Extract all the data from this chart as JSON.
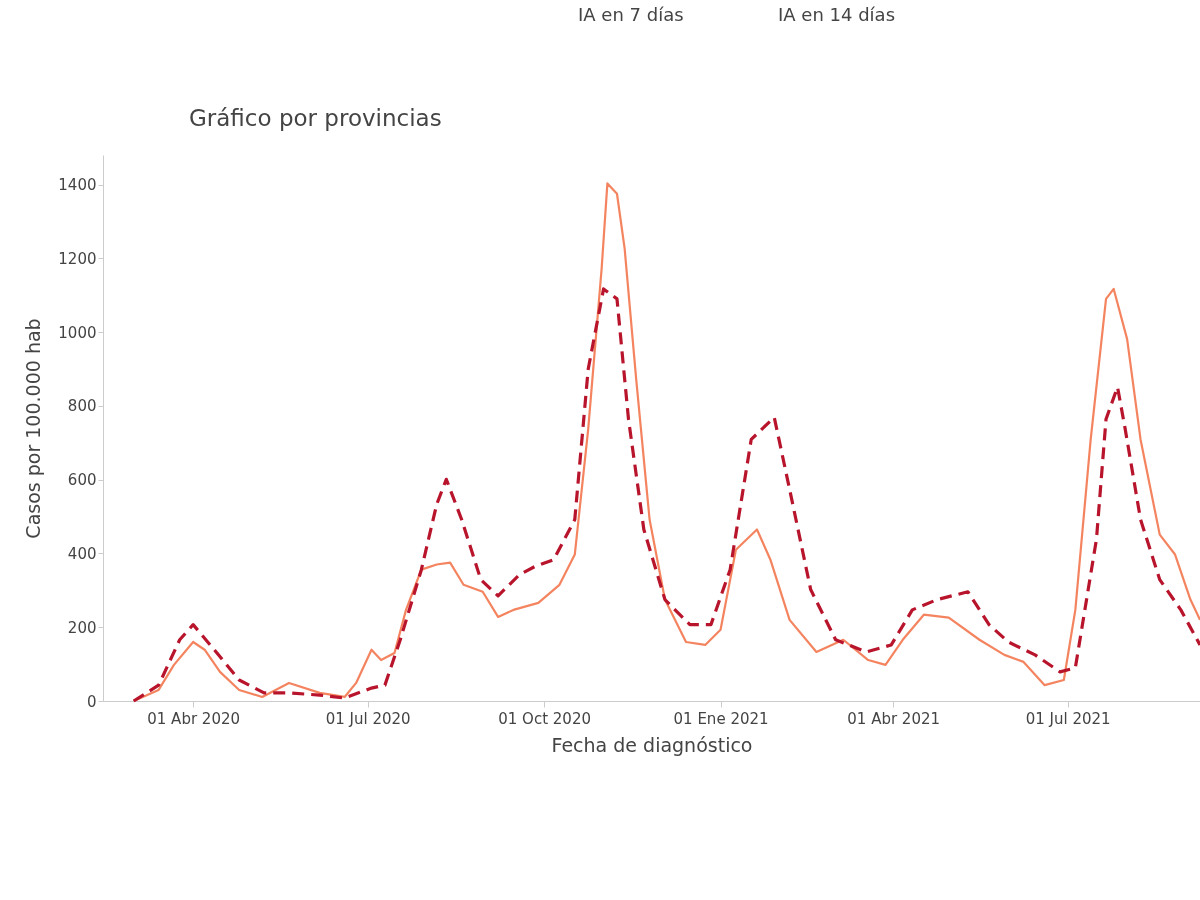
{
  "chart_data": {
    "type": "line",
    "title": "Gráfico por provincias",
    "xlabel": "Fecha de diagnóstico",
    "ylabel": "Casos por 100.000 hab",
    "annotations": [
      "IA en 7 días",
      "IA en 14 días"
    ],
    "xlim": [
      "2020-02-14",
      "2021-09-08"
    ],
    "xticks": [
      {
        "value": "2020-04-01",
        "label": "01 Abr 2020"
      },
      {
        "value": "2020-07-01",
        "label": "01 Jul 2020"
      },
      {
        "value": "2020-10-01",
        "label": "01 Oct 2020"
      },
      {
        "value": "2021-01-01",
        "label": "01 Ene 2021"
      },
      {
        "value": "2021-04-01",
        "label": "01 Abr 2021"
      },
      {
        "value": "2021-07-01",
        "label": "01 Jul 2021"
      }
    ],
    "ylim": [
      0,
      1480
    ],
    "yticks": [
      0,
      200,
      400,
      600,
      800,
      1000,
      1200,
      1400
    ],
    "grid": false,
    "marker": "none",
    "series": [
      {
        "color": "#f4845f",
        "line_style": "solid",
        "x": [
          "2020-03-01",
          "2020-03-14",
          "2020-03-22",
          "2020-04-01",
          "2020-04-07",
          "2020-04-15",
          "2020-04-25",
          "2020-05-07",
          "2020-05-21",
          "2020-06-06",
          "2020-06-19",
          "2020-06-25",
          "2020-07-03",
          "2020-07-08",
          "2020-07-15",
          "2020-07-21",
          "2020-07-29",
          "2020-08-06",
          "2020-08-13",
          "2020-08-20",
          "2020-08-30",
          "2020-09-07",
          "2020-09-15",
          "2020-09-28",
          "2020-10-09",
          "2020-10-17",
          "2020-10-24",
          "2020-10-31",
          "2020-11-03",
          "2020-11-08",
          "2020-11-12",
          "2020-11-18",
          "2020-11-25",
          "2020-12-03",
          "2020-12-14",
          "2020-12-24",
          "2021-01-01",
          "2021-01-09",
          "2021-01-20",
          "2021-01-27",
          "2021-02-06",
          "2021-02-20",
          "2021-03-06",
          "2021-03-19",
          "2021-03-28",
          "2021-04-06",
          "2021-04-17",
          "2021-04-30",
          "2021-05-16",
          "2021-05-29",
          "2021-06-08",
          "2021-06-19",
          "2021-06-29",
          "2021-07-05",
          "2021-07-13",
          "2021-07-21",
          "2021-07-25",
          "2021-08-01",
          "2021-08-08",
          "2021-08-18",
          "2021-08-26",
          "2021-09-03",
          "2021-09-08"
        ],
        "values": [
          0,
          30,
          98,
          160,
          139,
          79,
          30,
          11,
          49,
          22,
          11,
          49,
          139,
          111,
          130,
          247,
          356,
          370,
          375,
          315,
          296,
          228,
          247,
          266,
          315,
          397,
          737,
          1172,
          1403,
          1375,
          1226,
          873,
          492,
          275,
          160,
          152,
          193,
          410,
          465,
          383,
          220,
          133,
          166,
          111,
          98,
          166,
          234,
          226,
          166,
          125,
          106,
          43,
          57,
          247,
          709,
          1090,
          1117,
          981,
          709,
          451,
          397,
          275,
          220
        ]
      },
      {
        "color": "#b8142c",
        "line_style": "dashed",
        "x": [
          "2020-03-01",
          "2020-03-14",
          "2020-03-25",
          "2020-04-01",
          "2020-04-12",
          "2020-04-25",
          "2020-05-08",
          "2020-05-21",
          "2020-06-06",
          "2020-06-19",
          "2020-07-03",
          "2020-07-10",
          "2020-07-18",
          "2020-07-29",
          "2020-08-06",
          "2020-08-11",
          "2020-08-19",
          "2020-08-29",
          "2020-09-07",
          "2020-09-18",
          "2020-09-26",
          "2020-10-06",
          "2020-10-17",
          "2020-10-24",
          "2020-11-01",
          "2020-11-08",
          "2020-11-14",
          "2020-11-22",
          "2020-12-03",
          "2020-12-16",
          "2020-12-27",
          "2021-01-06",
          "2021-01-17",
          "2021-01-29",
          "2021-02-06",
          "2021-02-17",
          "2021-03-02",
          "2021-03-18",
          "2021-03-31",
          "2021-04-11",
          "2021-04-24",
          "2021-05-10",
          "2021-05-21",
          "2021-05-31",
          "2021-06-14",
          "2021-06-27",
          "2021-07-05",
          "2021-07-16",
          "2021-07-21",
          "2021-07-27",
          "2021-07-31",
          "2021-08-08",
          "2021-08-18",
          "2021-08-29",
          "2021-09-08"
        ],
        "values": [
          0,
          43,
          166,
          207,
          139,
          57,
          22,
          22,
          16,
          8,
          35,
          43,
          166,
          356,
          533,
          601,
          492,
          329,
          285,
          342,
          364,
          383,
          492,
          900,
          1117,
          1090,
          764,
          465,
          275,
          207,
          207,
          356,
          709,
          769,
          574,
          302,
          166,
          133,
          152,
          247,
          275,
          296,
          207,
          160,
          125,
          79,
          90,
          438,
          764,
          851,
          737,
          492,
          329,
          247,
          152
        ]
      }
    ]
  }
}
